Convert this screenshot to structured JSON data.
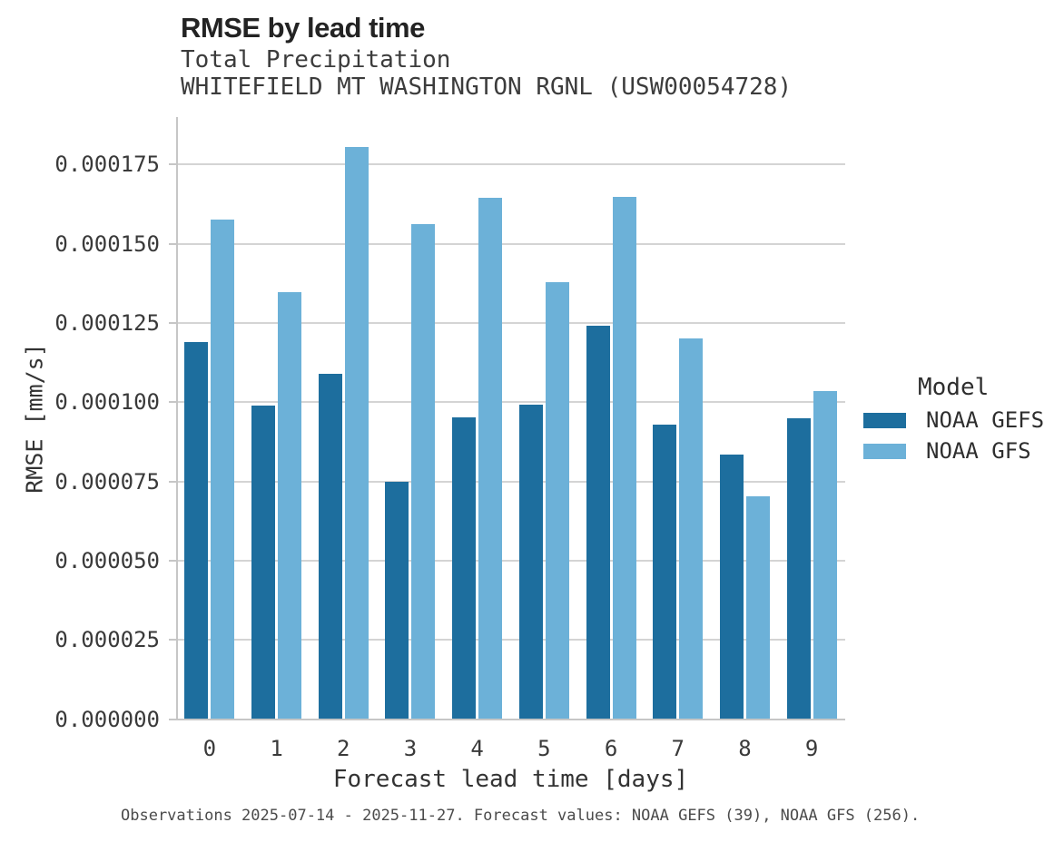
{
  "header": {
    "title": "RMSE by lead time",
    "subtitle_line1": "Total Precipitation",
    "subtitle_line2": "WHITEFIELD MT WASHINGTON RGNL (USW00054728)"
  },
  "chart_data": {
    "type": "bar",
    "title": "RMSE by lead time",
    "subtitle": "Total Precipitation",
    "station": "WHITEFIELD MT WASHINGTON RGNL (USW00054728)",
    "xlabel": "Forecast lead time [days]",
    "ylabel": "RMSE [mm/s]",
    "categories": [
      "0",
      "1",
      "2",
      "3",
      "4",
      "5",
      "6",
      "7",
      "8",
      "9"
    ],
    "series": [
      {
        "name": "NOAA GEFS",
        "color": "#1d6e9e",
        "values": [
          0.000119,
          9.9e-05,
          0.000109,
          7.5e-05,
          9.53e-05,
          9.91e-05,
          0.000124,
          9.28e-05,
          8.34e-05,
          9.48e-05
        ]
      },
      {
        "name": "NOAA GFS",
        "color": "#6cb1d8",
        "values": [
          0.0001575,
          0.0001348,
          0.0001805,
          0.0001563,
          0.0001645,
          0.000138,
          0.0001648,
          0.00012,
          7.03e-05,
          0.0001036
        ]
      }
    ],
    "ylim": [
      0,
      0.00019
    ],
    "yticks": [
      0,
      2.5e-05,
      5e-05,
      7.5e-05,
      0.0001,
      0.000125,
      0.00015,
      0.000175
    ],
    "ytick_labels": [
      "0.000000",
      "0.000025",
      "0.000050",
      "0.000075",
      "0.000100",
      "0.000125",
      "0.000150",
      "0.000175"
    ],
    "grid": "horizontal-major-only",
    "legend_position": "right"
  },
  "legend": {
    "title": "Model",
    "items": [
      {
        "label": "NOAA GEFS",
        "color": "#1d6e9e"
      },
      {
        "label": "NOAA GFS",
        "color": "#6cb1d8"
      }
    ]
  },
  "footer": {
    "caption": "Observations 2025-07-14 - 2025-11-27. Forecast values: NOAA GEFS (39), NOAA GFS (256)."
  }
}
